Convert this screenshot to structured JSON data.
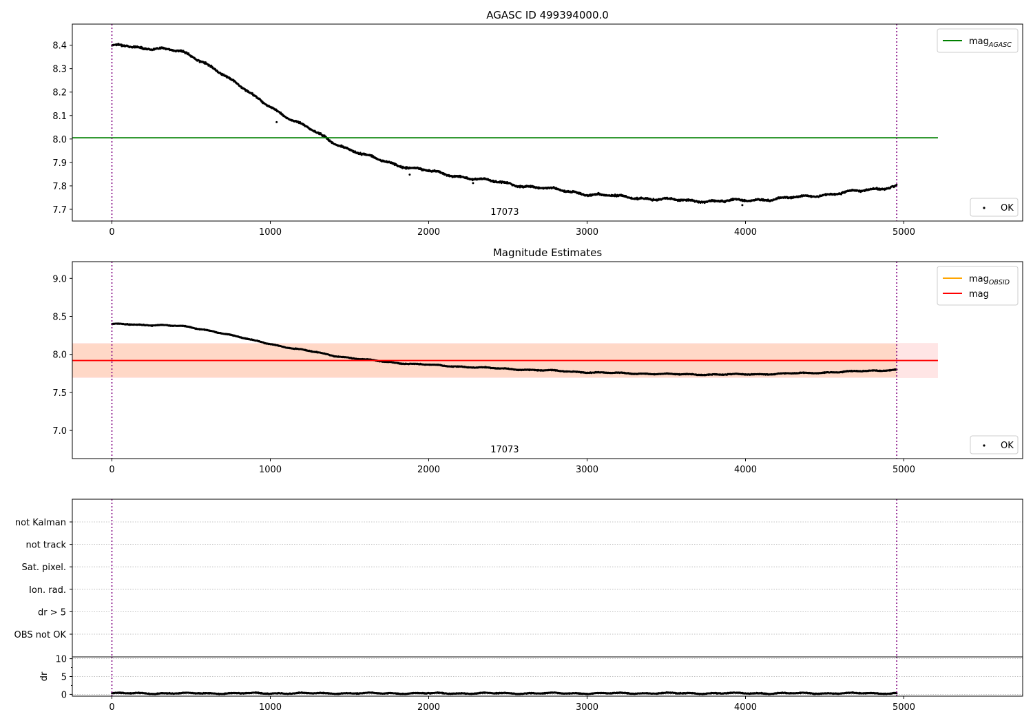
{
  "chart_data": [
    {
      "type": "scatter",
      "title": "AGASC ID 499394000.0",
      "xlim": [
        -250,
        5750
      ],
      "ylim": [
        7.65,
        8.49
      ],
      "x_ticks": [
        0,
        1000,
        2000,
        3000,
        4000,
        5000
      ],
      "y_ticks": [
        7.7,
        7.8,
        7.9,
        8.0,
        8.1,
        8.2,
        8.3,
        8.4
      ],
      "y_tick_format": 1,
      "grid": false,
      "obsid_label": "17073",
      "obsid_label_x": 2480,
      "vlines": [
        0,
        4955
      ],
      "hlines": [
        {
          "name": "mag_agasc",
          "y": 8.005,
          "x_end": 5215,
          "color": "#008000"
        }
      ],
      "legend_upper": {
        "placement": "top-right",
        "entries": [
          {
            "label": "mag",
            "sub": "AGASC",
            "color": "#008000"
          }
        ]
      },
      "legend_lower": {
        "placement": "bottom-right",
        "label": "OK"
      },
      "series": [
        {
          "name": "OK",
          "color": "#000000",
          "curve": [
            [
              0,
              8.4
            ],
            [
              100,
              8.395
            ],
            [
              200,
              8.385
            ],
            [
              300,
              8.39
            ],
            [
              430,
              8.375
            ],
            [
              500,
              8.35
            ],
            [
              600,
              8.32
            ],
            [
              700,
              8.28
            ],
            [
              800,
              8.23
            ],
            [
              900,
              8.18
            ],
            [
              1000,
              8.14
            ],
            [
              1100,
              8.095
            ],
            [
              1200,
              8.06
            ],
            [
              1300,
              8.025
            ],
            [
              1400,
              7.985
            ],
            [
              1500,
              7.955
            ],
            [
              1600,
              7.93
            ],
            [
              1700,
              7.91
            ],
            [
              1800,
              7.89
            ],
            [
              1900,
              7.875
            ],
            [
              2000,
              7.865
            ],
            [
              2100,
              7.85
            ],
            [
              2200,
              7.84
            ],
            [
              2300,
              7.83
            ],
            [
              2400,
              7.82
            ],
            [
              2500,
              7.81
            ],
            [
              2600,
              7.8
            ],
            [
              2800,
              7.785
            ],
            [
              3000,
              7.765
            ],
            [
              3200,
              7.755
            ],
            [
              3400,
              7.745
            ],
            [
              3600,
              7.738
            ],
            [
              3800,
              7.735
            ],
            [
              4000,
              7.738
            ],
            [
              4200,
              7.745
            ],
            [
              4400,
              7.755
            ],
            [
              4600,
              7.77
            ],
            [
              4800,
              7.785
            ],
            [
              4955,
              7.8
            ]
          ],
          "noise": 0.006
        }
      ]
    },
    {
      "type": "scatter",
      "title": "Magnitude Estimates",
      "xlim": [
        -250,
        5750
      ],
      "ylim": [
        6.63,
        9.22
      ],
      "x_ticks": [
        0,
        1000,
        2000,
        3000,
        4000,
        5000
      ],
      "y_ticks": [
        7.0,
        7.5,
        8.0,
        8.5,
        9.0
      ],
      "y_tick_format": 1,
      "grid": false,
      "obsid_label": "17073",
      "obsid_label_x": 2480,
      "vlines": [
        0,
        4955
      ],
      "bands": [
        {
          "y0": 7.69,
          "y1": 8.15,
          "x_end": 5215,
          "color": "#ff0000",
          "opacity": 0.1
        },
        {
          "y0": 7.7,
          "y1": 8.14,
          "x_end": 4955,
          "color": "#ff8000",
          "opacity": 0.13
        }
      ],
      "hlines": [
        {
          "name": "mag",
          "y": 7.92,
          "x_end": 5215,
          "color": "#ff0000"
        }
      ],
      "legend_upper": {
        "placement": "top-right",
        "entries": [
          {
            "label": "mag",
            "sub": "OBSID",
            "color": "#ffa500"
          },
          {
            "label": "mag",
            "sub": "",
            "color": "#ff0000"
          }
        ]
      },
      "legend_lower": {
        "placement": "bottom-right",
        "label": "OK"
      },
      "series": [
        {
          "name": "OK",
          "color": "#000000",
          "curve": [
            [
              0,
              8.4
            ],
            [
              100,
              8.395
            ],
            [
              200,
              8.385
            ],
            [
              300,
              8.39
            ],
            [
              430,
              8.375
            ],
            [
              500,
              8.35
            ],
            [
              600,
              8.32
            ],
            [
              700,
              8.28
            ],
            [
              800,
              8.23
            ],
            [
              900,
              8.18
            ],
            [
              1000,
              8.14
            ],
            [
              1100,
              8.095
            ],
            [
              1200,
              8.06
            ],
            [
              1300,
              8.025
            ],
            [
              1400,
              7.985
            ],
            [
              1500,
              7.955
            ],
            [
              1600,
              7.93
            ],
            [
              1700,
              7.91
            ],
            [
              1800,
              7.89
            ],
            [
              1900,
              7.875
            ],
            [
              2000,
              7.865
            ],
            [
              2100,
              7.85
            ],
            [
              2200,
              7.84
            ],
            [
              2300,
              7.83
            ],
            [
              2400,
              7.82
            ],
            [
              2500,
              7.81
            ],
            [
              2600,
              7.8
            ],
            [
              2800,
              7.785
            ],
            [
              3000,
              7.765
            ],
            [
              3200,
              7.755
            ],
            [
              3400,
              7.745
            ],
            [
              3600,
              7.738
            ],
            [
              3800,
              7.735
            ],
            [
              4000,
              7.738
            ],
            [
              4200,
              7.745
            ],
            [
              4400,
              7.755
            ],
            [
              4600,
              7.77
            ],
            [
              4800,
              7.785
            ],
            [
              4955,
              7.8
            ]
          ],
          "noise": 0.008
        }
      ]
    },
    {
      "type": "table",
      "xlim": [
        -250,
        5750
      ],
      "vlines": [
        0,
        4955
      ],
      "flag_labels": [
        "not Kalman",
        "not track",
        "Sat. pixel.",
        "Ion. rad.",
        "dr > 5",
        "OBS not OK"
      ],
      "flags_set": []
    },
    {
      "type": "scatter",
      "ylabel": "dr",
      "xlim": [
        -250,
        5750
      ],
      "ylim": [
        -0.5,
        10.5
      ],
      "x_ticks": [
        0,
        1000,
        2000,
        3000,
        4000,
        5000
      ],
      "y_ticks": [
        0,
        5,
        10
      ],
      "y_tick_format": 0,
      "grid": true,
      "vlines": [
        0,
        4955
      ],
      "series": [
        {
          "name": "dr",
          "color": "#000000",
          "curve": [
            [
              0,
              0.3
            ],
            [
              4955,
              0.3
            ]
          ],
          "noise": 0.18
        }
      ]
    }
  ]
}
